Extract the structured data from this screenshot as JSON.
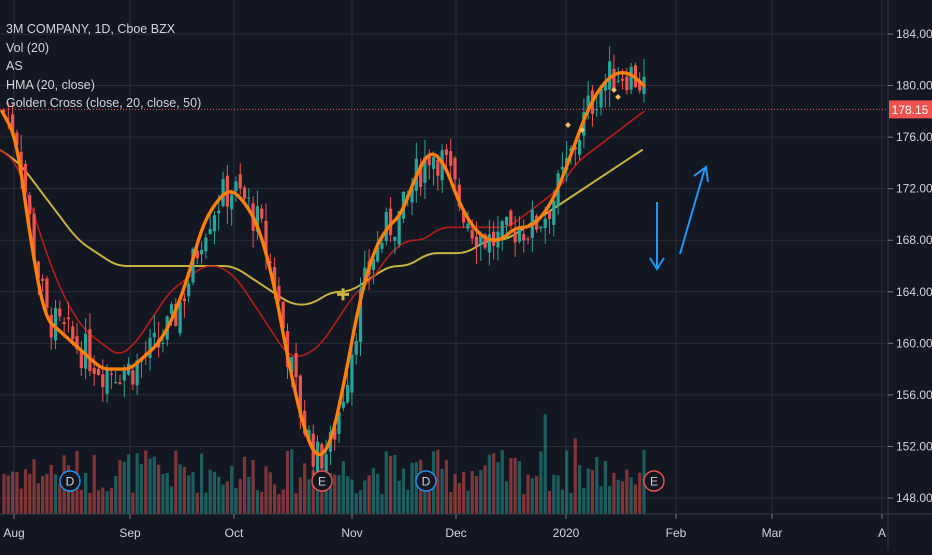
{
  "legend": {
    "title": "3M COMPANY, 1D, Cboe BZX",
    "vol": "Vol (20)",
    "as": "AS",
    "hma": "HMA (20, close)",
    "golden": "Golden Cross (close, 20, close, 50)"
  },
  "colors": {
    "background": "#131722",
    "grid": "#2a2e39",
    "axis_text": "#d1d4dc",
    "up_candle": "#26a69a",
    "down_candle": "#ef5350",
    "hma": "#ff7f0e",
    "ma20": "#b71c1c",
    "ma50": "#c8b43c",
    "price_line": "#ef5350",
    "price_tag": "#ef5350",
    "arrows": "#2196f3",
    "golden_cross_marker": "#c8b43c"
  },
  "chart_data": {
    "type": "candlestick",
    "y_axis": {
      "ticks": [
        148.0,
        152.0,
        156.0,
        160.0,
        164.0,
        168.0,
        172.0,
        176.0,
        180.0,
        184.0
      ],
      "range": [
        147.5,
        185.5
      ],
      "position": "right"
    },
    "x_axis": {
      "labels": [
        "Aug",
        "Sep",
        "Oct",
        "Nov",
        "Dec",
        "2020",
        "Feb",
        "Mar",
        "A"
      ]
    },
    "last_price": 178.15,
    "last_price_label": "178.15",
    "hma_20": [
      178,
      176,
      168,
      162,
      161,
      160,
      159,
      158,
      158,
      158,
      159,
      160,
      162,
      165,
      169,
      171,
      172,
      171,
      169,
      165,
      159,
      154,
      151,
      152,
      157,
      163,
      167,
      169,
      170,
      173,
      175,
      174,
      171,
      169,
      168,
      168,
      169,
      169,
      170,
      172,
      175,
      178,
      180,
      181,
      181,
      180
    ],
    "ma_20": [
      175,
      174,
      170,
      166,
      163,
      161,
      160,
      159,
      160,
      162,
      164,
      165,
      166,
      166,
      165,
      163,
      161,
      159,
      159,
      160,
      162,
      164,
      165,
      167,
      168,
      168,
      169,
      169,
      169,
      169,
      169,
      170,
      171,
      172,
      174,
      175,
      176,
      177,
      178
    ],
    "ma_50": [
      175,
      174,
      172,
      170,
      168,
      167,
      166,
      166,
      166,
      166,
      166,
      166,
      166,
      165,
      164,
      163,
      163,
      164,
      164,
      165,
      166,
      166,
      167,
      167,
      167,
      168,
      168,
      169,
      170,
      171,
      172,
      173,
      174,
      175
    ],
    "event_markers": [
      "D",
      "E",
      "D",
      "E"
    ],
    "annotations": [
      "golden-cross",
      "down-arrow",
      "up-arrow"
    ]
  }
}
